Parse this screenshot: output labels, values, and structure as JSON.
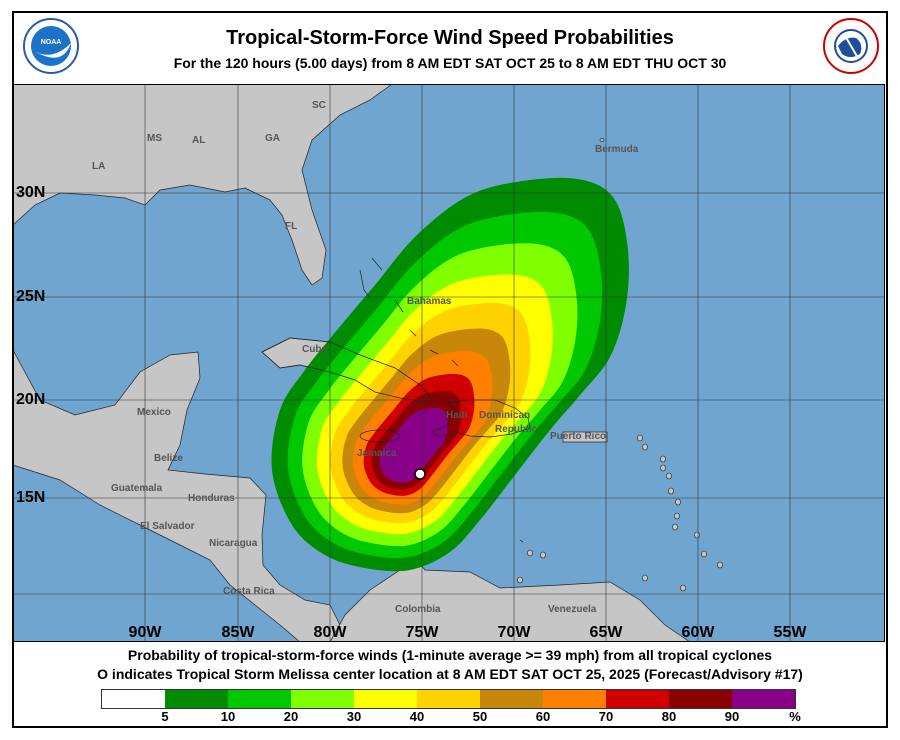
{
  "header": {
    "title": "Tropical-Storm-Force Wind Speed Probabilities",
    "subtitle": "For the 120 hours (5.00 days) from 8 AM EDT SAT OCT 25 to 8 AM EDT THU OCT 30",
    "left_logo": "NOAA",
    "right_logo": "NATIONAL WEATHER SERVICE"
  },
  "map": {
    "ocean_color": "#6fa5cf",
    "land_color": "#c6c6c6",
    "longitude_labels": [
      "90W",
      "85W",
      "80W",
      "75W",
      "70W",
      "65W",
      "60W",
      "55W"
    ],
    "latitude_labels": [
      "30N",
      "25N",
      "20N",
      "15N"
    ],
    "place_labels": {
      "la": "LA",
      "ms": "MS",
      "al": "AL",
      "ga": "GA",
      "sc": "SC",
      "fl": "FL",
      "mexico": "Mexico",
      "belize": "Belize",
      "guatemala": "Guatemala",
      "honduras": "Honduras",
      "el_salvador": "El Salvador",
      "nicaragua": "Nicaragua",
      "costa_rica": "Costa Rica",
      "cuba": "Cuba",
      "bahamas": "Bahamas",
      "jamaica": "Jamaica",
      "haiti": "Haiti",
      "dominican_republic_1": "Dominican",
      "dominican_republic_2": "Republic",
      "puerto_rico": "Puerto Rico",
      "bermuda": "Bermuda",
      "venezuela": "Venezuela",
      "colombia": "Colombia"
    },
    "storm_marker": "open-circle"
  },
  "legend": {
    "line1": "Probability of tropical-storm-force winds (1-minute average >= 39 mph) from all tropical cyclones",
    "line2": "O indicates Tropical Storm Melissa center location at 8 AM EDT SAT OCT 25, 2025 (Forecast/Advisory #17)",
    "colorbar": {
      "colors": [
        "#ffffff",
        "#008c00",
        "#00c800",
        "#80ff00",
        "#ffff00",
        "#ffd200",
        "#c8860a",
        "#ff8000",
        "#d00000",
        "#880000",
        "#880088"
      ],
      "labels": [
        "5",
        "10",
        "20",
        "30",
        "40",
        "50",
        "60",
        "70",
        "80",
        "90",
        "%"
      ]
    }
  }
}
